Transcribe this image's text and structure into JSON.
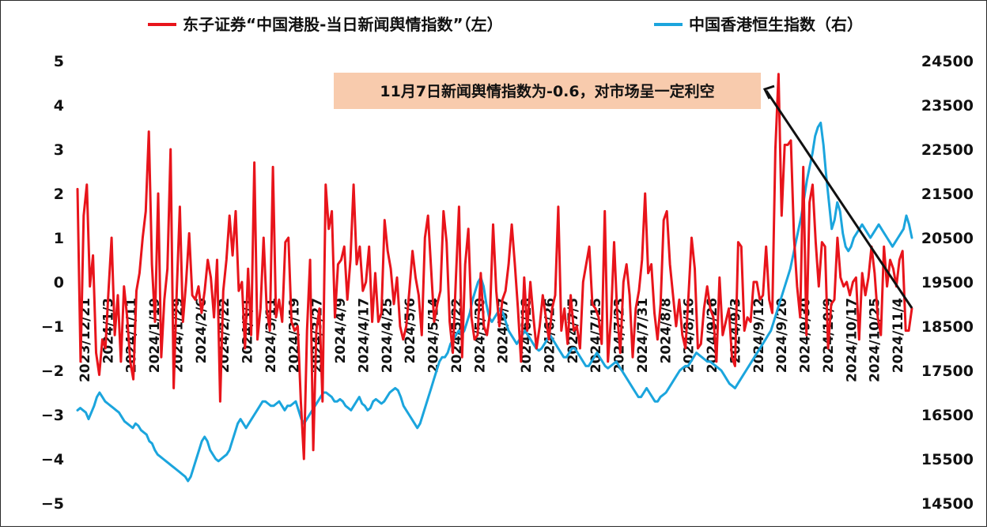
{
  "chart_data": {
    "type": "line",
    "legend": [
      {
        "label": "东子证券“中国港股-当日新闻舆情指数”（左）",
        "color": "#e8141b",
        "axis": "left"
      },
      {
        "label": "中国香港恒生指数（右）",
        "color": "#1ba5dd",
        "axis": "right"
      }
    ],
    "legend_position": "top",
    "left_axis": {
      "ylim": [
        -5,
        5
      ],
      "ticks": [
        "5",
        "4",
        "3",
        "2",
        "1",
        "0",
        "−1",
        "−2",
        "−3",
        "−4",
        "−5"
      ]
    },
    "right_axis": {
      "ylim": [
        14500,
        24500
      ],
      "ticks": [
        "24500",
        "23500",
        "22500",
        "21500",
        "20500",
        "19500",
        "18500",
        "17500",
        "16500",
        "15500",
        "14500"
      ]
    },
    "x_tick_labels": [
      "2023/12/21",
      "2024/1/3",
      "2024/1/11",
      "2024/1/19",
      "2024/1/29",
      "2024/2/6",
      "2024/2/22",
      "2024/3/1",
      "2024/3/11",
      "2024/3/19",
      "2024/3/27",
      "2024/4/9",
      "2024/4/17",
      "2024/4/25",
      "2024/5/6",
      "2024/5/14",
      "2024/5/22",
      "2024/5/30",
      "2024/6/7",
      "2024/6/18",
      "2024/6/26",
      "2024/7/5",
      "2024/7/15",
      "2024/7/23",
      "2024/7/31",
      "2024/8/8",
      "2024/8/16",
      "2024/9/26",
      "2024/9/3",
      "2024/9/12",
      "2024/9/20",
      "2024/9/30",
      "2024/10/9",
      "2024/10/17",
      "2024/10/25",
      "2024/11/4"
    ],
    "grid": false,
    "annotation": {
      "text": "11月7日新闻舆情指数为-0.6，对市场呈一定利空",
      "background": "#f8cbad"
    },
    "series": [
      {
        "name": "东子证券“中国港股-当日新闻舆情指数”（左）",
        "axis": "left",
        "color": "#e8141b",
        "values": [
          2.1,
          -1.8,
          1.5,
          2.2,
          -0.1,
          0.6,
          -1.6,
          -2.1,
          -1.3,
          -1.5,
          -0.2,
          1.0,
          -1.2,
          -0.3,
          -1.8,
          -0.1,
          -0.8,
          -1.8,
          -2.2,
          -0.2,
          0.2,
          1.0,
          1.6,
          3.4,
          0.4,
          -0.9,
          2.0,
          -1.7,
          -0.4,
          0.3,
          3.0,
          -2.4,
          -0.2,
          1.7,
          -0.9,
          0.0,
          1.1,
          -0.3,
          -0.4,
          -0.1,
          -0.7,
          -0.2,
          0.5,
          0.1,
          -0.8,
          0.5,
          -2.7,
          -0.2,
          0.5,
          1.5,
          0.6,
          1.6,
          -0.2,
          0.0,
          -1.5,
          0.3,
          -1.2,
          2.7,
          -1.3,
          -0.6,
          1.0,
          -0.6,
          -1.1,
          2.6,
          -0.8,
          -0.4,
          -0.9,
          0.9,
          1.0,
          -0.9,
          -1.1,
          -1.0,
          -2.7,
          -4.0,
          -1.1,
          0.5,
          -3.8,
          -1.1,
          -0.6,
          -2.7,
          2.2,
          1.2,
          1.6,
          -0.8,
          0.4,
          0.5,
          0.8,
          -0.4,
          0.5,
          2.2,
          0.4,
          0.8,
          -0.2,
          0.0,
          0.8,
          -0.9,
          0.2,
          -0.9,
          -0.7,
          1.4,
          0.7,
          0.3,
          -0.5,
          0.1,
          -1.0,
          -1.3,
          -1.0,
          -0.2,
          0.7,
          0.1,
          -0.3,
          -1.2,
          1.0,
          1.5,
          0.3,
          -0.9,
          -0.5,
          -0.2,
          1.6,
          0.9,
          -0.9,
          -1.6,
          0.1,
          1.7,
          -1.7,
          0.4,
          1.2,
          -0.8,
          -1.3,
          -1.2,
          0.2,
          -1.0,
          -1.2,
          -0.7,
          1.3,
          -0.2,
          -1.0,
          -0.4,
          -0.2,
          0.4,
          1.3,
          0.4,
          -0.6,
          -1.8,
          0.1,
          -1.1,
          0.0,
          -0.8,
          -1.5,
          -1.0,
          -0.3,
          -0.8,
          -1.3,
          -0.6,
          -0.3,
          1.7,
          -1.1,
          -0.6,
          -1.4,
          -0.3,
          -1.1,
          -1.0,
          -1.5,
          0.0,
          0.4,
          0.8,
          -0.5,
          -0.6,
          -0.8,
          -1.4,
          1.6,
          -1.8,
          -0.8,
          0.9,
          -0.7,
          -1.6,
          0.0,
          0.4,
          -0.3,
          -1.7,
          -0.6,
          -0.2,
          0.5,
          2.0,
          0.2,
          0.4,
          -0.7,
          -1.3,
          -0.5,
          1.4,
          1.6,
          0.4,
          -0.3,
          -1.0,
          -0.4,
          -1.2,
          -1.5,
          -0.3,
          1.0,
          0.3,
          -1.5,
          -1.4,
          -0.6,
          -0.1,
          -0.6,
          -0.8,
          -1.8,
          0.1,
          -1.2,
          -0.9,
          -0.6,
          -1.7,
          -1.9,
          0.9,
          0.8,
          -1.1,
          -0.8,
          -0.9,
          0.0,
          0.0,
          -0.4,
          -0.3,
          0.8,
          -0.4,
          -0.7,
          3.0,
          4.7,
          1.5,
          3.1,
          3.1,
          3.2,
          1.0,
          -0.1,
          -0.8,
          2.6,
          -1.2,
          1.8,
          2.2,
          0.9,
          -0.1,
          0.9,
          0.8,
          -1.5,
          -0.5,
          -0.4,
          1.0,
          0.1,
          -0.1,
          0.0,
          -0.3,
          0.0,
          0.1,
          -1.3,
          0.2,
          -0.3,
          0.1,
          0.8,
          0.2,
          -0.8,
          -1.2,
          0.8,
          -0.1,
          0.5,
          0.3,
          -0.1,
          0.5,
          0.7,
          -1.1,
          -1.1,
          -0.6
        ]
      },
      {
        "name": "中国香港恒生指数（右）",
        "axis": "right",
        "color": "#1ba5dd",
        "values": [
          16600,
          16650,
          16600,
          16550,
          16400,
          16550,
          16700,
          16900,
          17000,
          16900,
          16800,
          16750,
          16700,
          16650,
          16600,
          16550,
          16450,
          16350,
          16300,
          16250,
          16200,
          16300,
          16250,
          16150,
          16100,
          16050,
          15900,
          15850,
          15700,
          15600,
          15550,
          15500,
          15450,
          15400,
          15350,
          15300,
          15250,
          15200,
          15150,
          15100,
          15000,
          15100,
          15300,
          15500,
          15700,
          15900,
          16000,
          15900,
          15700,
          15600,
          15500,
          15450,
          15500,
          15550,
          15600,
          15700,
          15900,
          16100,
          16300,
          16400,
          16300,
          16200,
          16300,
          16400,
          16500,
          16600,
          16700,
          16800,
          16800,
          16750,
          16700,
          16700,
          16750,
          16800,
          16700,
          16600,
          16700,
          16700,
          16750,
          16800,
          16600,
          16400,
          16300,
          16400,
          16500,
          16600,
          16700,
          16800,
          16900,
          17000,
          17000,
          16950,
          16900,
          16800,
          16800,
          16850,
          16800,
          16700,
          16650,
          16600,
          16700,
          16800,
          16900,
          16750,
          16700,
          16600,
          16650,
          16800,
          16850,
          16800,
          16750,
          16800,
          16900,
          17000,
          17050,
          17100,
          17050,
          16900,
          16700,
          16600,
          16500,
          16400,
          16300,
          16200,
          16300,
          16500,
          16700,
          16900,
          17100,
          17300,
          17500,
          17700,
          17800,
          17800,
          17900,
          18100,
          18200,
          18300,
          18400,
          18300,
          18400,
          18600,
          18800,
          19100,
          19300,
          19500,
          19600,
          19400,
          19000,
          18700,
          18600,
          18700,
          18800,
          18900,
          18800,
          18600,
          18400,
          18300,
          18200,
          18100,
          18200,
          18300,
          18400,
          18300,
          18200,
          18100,
          18000,
          17950,
          18000,
          18100,
          18200,
          18300,
          18200,
          18100,
          18000,
          17900,
          17800,
          17800,
          17900,
          18000,
          18000,
          17900,
          17800,
          17700,
          17600,
          17600,
          17700,
          17800,
          17900,
          17800,
          17700,
          17600,
          17550,
          17600,
          17650,
          17700,
          17600,
          17500,
          17400,
          17300,
          17200,
          17100,
          17000,
          16900,
          16900,
          17000,
          17100,
          17000,
          16900,
          16800,
          16800,
          16900,
          16950,
          17000,
          17100,
          17200,
          17300,
          17400,
          17500,
          17550,
          17600,
          17600,
          17700,
          17800,
          17900,
          17850,
          17800,
          17750,
          17700,
          17700,
          17650,
          17600,
          17550,
          17500,
          17400,
          17300,
          17200,
          17150,
          17100,
          17200,
          17300,
          17400,
          17500,
          17600,
          17700,
          17800,
          17900,
          18000,
          18100,
          18200,
          18300,
          18400,
          18600,
          18800,
          19000,
          19200,
          19400,
          19600,
          19800,
          20100,
          20400,
          20700,
          21000,
          21400,
          21800,
          22100,
          22400,
          22800,
          23000,
          23100,
          22600,
          21900,
          21300,
          20700,
          20900,
          21300,
          21100,
          20600,
          20300,
          20200,
          20300,
          20500,
          20600,
          20700,
          20800,
          20700,
          20600,
          20500,
          20600,
          20700,
          20800,
          20700,
          20600,
          20500,
          20400,
          20300,
          20400,
          20500,
          20600,
          20700,
          21000,
          20800,
          20500
        ]
      }
    ]
  }
}
